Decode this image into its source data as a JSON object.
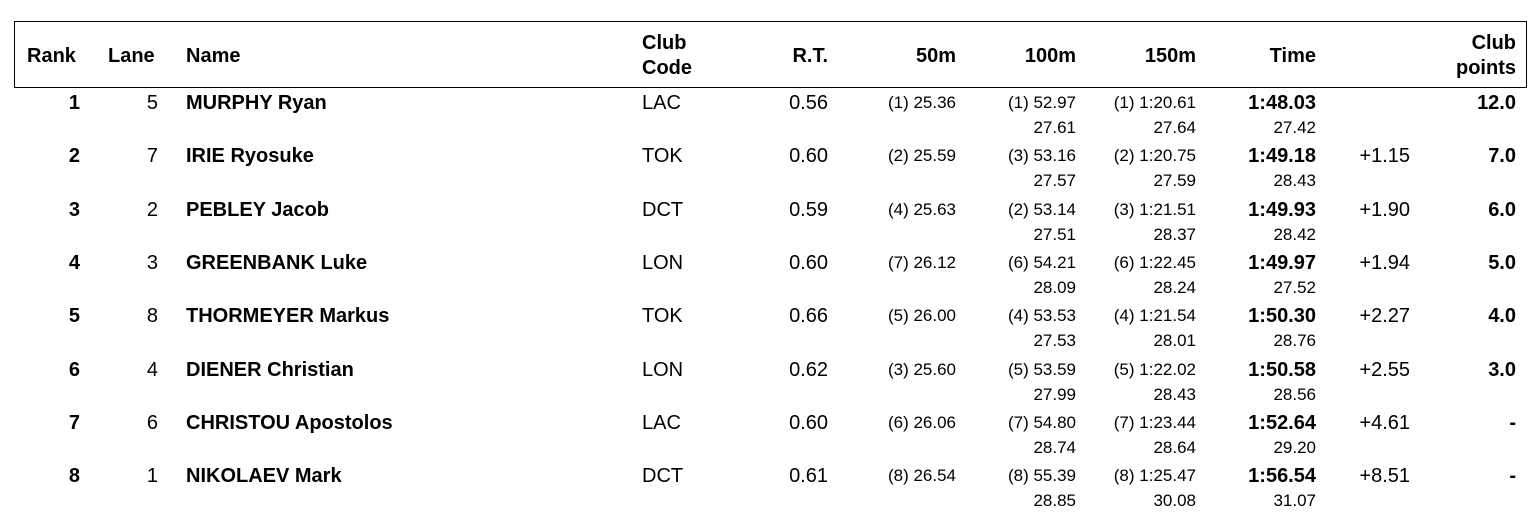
{
  "columns": {
    "rank": "Rank",
    "lane": "Lane",
    "name": "Name",
    "club_code": [
      "Club",
      "Code"
    ],
    "rt": "R.T.",
    "s50": "50m",
    "s100": "100m",
    "s150": "150m",
    "time": "Time",
    "club_points": [
      "Club",
      "points"
    ]
  },
  "results": [
    {
      "rank": "1",
      "lane": "5",
      "name": "MURPHY Ryan",
      "club": "LAC",
      "rt": "0.56",
      "s50": "(1) 25.36",
      "s100": "(1) 52.97",
      "s100_split": "27.61",
      "s150": "(1) 1:20.61",
      "s150_split": "27.64",
      "time": "1:48.03",
      "time_split": "27.42",
      "behind": "",
      "points": "12.0"
    },
    {
      "rank": "2",
      "lane": "7",
      "name": "IRIE Ryosuke",
      "club": "TOK",
      "rt": "0.60",
      "s50": "(2) 25.59",
      "s100": "(3) 53.16",
      "s100_split": "27.57",
      "s150": "(2) 1:20.75",
      "s150_split": "27.59",
      "time": "1:49.18",
      "time_split": "28.43",
      "behind": "+1.15",
      "points": "7.0"
    },
    {
      "rank": "3",
      "lane": "2",
      "name": "PEBLEY Jacob",
      "club": "DCT",
      "rt": "0.59",
      "s50": "(4) 25.63",
      "s100": "(2) 53.14",
      "s100_split": "27.51",
      "s150": "(3) 1:21.51",
      "s150_split": "28.37",
      "time": "1:49.93",
      "time_split": "28.42",
      "behind": "+1.90",
      "points": "6.0"
    },
    {
      "rank": "4",
      "lane": "3",
      "name": "GREENBANK Luke",
      "club": "LON",
      "rt": "0.60",
      "s50": "(7) 26.12",
      "s100": "(6) 54.21",
      "s100_split": "28.09",
      "s150": "(6) 1:22.45",
      "s150_split": "28.24",
      "time": "1:49.97",
      "time_split": "27.52",
      "behind": "+1.94",
      "points": "5.0"
    },
    {
      "rank": "5",
      "lane": "8",
      "name": "THORMEYER Markus",
      "club": "TOK",
      "rt": "0.66",
      "s50": "(5) 26.00",
      "s100": "(4) 53.53",
      "s100_split": "27.53",
      "s150": "(4) 1:21.54",
      "s150_split": "28.01",
      "time": "1:50.30",
      "time_split": "28.76",
      "behind": "+2.27",
      "points": "4.0"
    },
    {
      "rank": "6",
      "lane": "4",
      "name": "DIENER Christian",
      "club": "LON",
      "rt": "0.62",
      "s50": "(3) 25.60",
      "s100": "(5) 53.59",
      "s100_split": "27.99",
      "s150": "(5) 1:22.02",
      "s150_split": "28.43",
      "time": "1:50.58",
      "time_split": "28.56",
      "behind": "+2.55",
      "points": "3.0"
    },
    {
      "rank": "7",
      "lane": "6",
      "name": "CHRISTOU Apostolos",
      "club": "LAC",
      "rt": "0.60",
      "s50": "(6) 26.06",
      "s100": "(7) 54.80",
      "s100_split": "28.74",
      "s150": "(7) 1:23.44",
      "s150_split": "28.64",
      "time": "1:52.64",
      "time_split": "29.20",
      "behind": "+4.61",
      "points": "-"
    },
    {
      "rank": "8",
      "lane": "1",
      "name": "NIKOLAEV Mark",
      "club": "DCT",
      "rt": "0.61",
      "s50": "(8) 26.54",
      "s100": "(8) 55.39",
      "s100_split": "28.85",
      "s150": "(8) 1:25.47",
      "s150_split": "30.08",
      "time": "1:56.54",
      "time_split": "31.07",
      "behind": "+8.51",
      "points": "-"
    }
  ]
}
